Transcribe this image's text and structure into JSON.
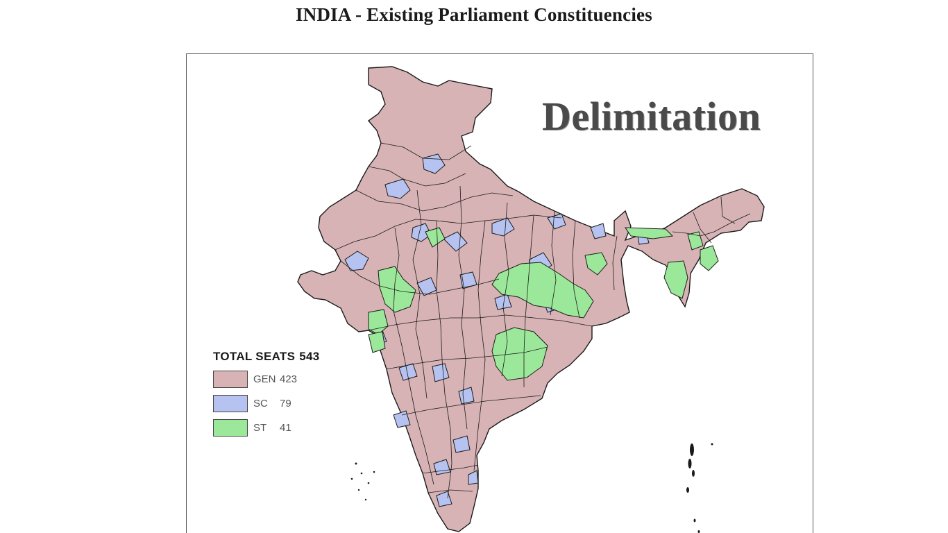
{
  "title": "INDIA - Existing Parliament Constituencies",
  "watermark": "Delimitation",
  "legend": {
    "title": "TOTAL SEATS",
    "total": "543",
    "items": [
      {
        "label": "GEN",
        "count": "423",
        "color": "#d7b3b5"
      },
      {
        "label": "SC",
        "count": "79",
        "color": "#b6c3f0"
      },
      {
        "label": "ST",
        "count": "41",
        "color": "#9ce89a"
      }
    ]
  },
  "colors": {
    "border": "#1a1a1a",
    "gen": "#d7b3b5",
    "sc": "#b6c3f0",
    "st": "#9ce89a"
  }
}
